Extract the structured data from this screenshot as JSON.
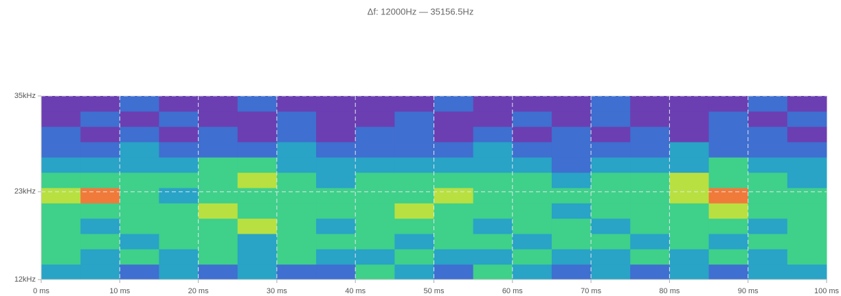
{
  "chart_data": {
    "type": "heatmap",
    "title": "Δf: 12000Hz — 35156.5Hz",
    "xlim": [
      0,
      100
    ],
    "xticks": [
      {
        "value": 0,
        "label": "0 ms"
      },
      {
        "value": 10,
        "label": "10 ms"
      },
      {
        "value": 20,
        "label": "20 ms"
      },
      {
        "value": 30,
        "label": "30 ms"
      },
      {
        "value": 40,
        "label": "40 ms"
      },
      {
        "value": 50,
        "label": "50 ms"
      },
      {
        "value": 60,
        "label": "60 ms"
      },
      {
        "value": 70,
        "label": "70 ms"
      },
      {
        "value": 80,
        "label": "80 ms"
      },
      {
        "value": 90,
        "label": "90 ms"
      },
      {
        "value": 100,
        "label": "100 ms"
      }
    ],
    "ylim": [
      12,
      35
    ],
    "yticks": [
      {
        "value": 12,
        "label": "12kHz"
      },
      {
        "value": 23,
        "label": "23kHz"
      },
      {
        "value": 35,
        "label": "35kHz"
      }
    ],
    "grid": true,
    "colorscale": [
      "#6b3fb2",
      "#3f6fd0",
      "#29a3c6",
      "#3fd08a",
      "#b8e040",
      "#f07a3a"
    ],
    "z": [
      [
        2,
        2,
        1,
        2,
        1,
        2,
        1,
        1,
        3,
        2,
        1,
        3,
        2,
        1,
        2,
        1,
        2,
        1,
        2,
        2
      ],
      [
        3,
        2,
        3,
        2,
        3,
        2,
        3,
        2,
        2,
        3,
        2,
        2,
        3,
        2,
        2,
        3,
        2,
        3,
        2,
        3
      ],
      [
        3,
        3,
        2,
        3,
        3,
        2,
        3,
        3,
        3,
        2,
        3,
        3,
        2,
        3,
        3,
        2,
        3,
        2,
        3,
        3
      ],
      [
        3,
        2,
        3,
        3,
        3,
        4,
        3,
        2,
        3,
        3,
        3,
        2,
        3,
        3,
        2,
        3,
        3,
        3,
        2,
        3
      ],
      [
        3,
        3,
        3,
        3,
        4,
        3,
        3,
        3,
        3,
        4,
        3,
        3,
        3,
        2,
        3,
        3,
        3,
        4,
        3,
        3
      ],
      [
        4,
        5,
        3,
        2,
        3,
        3,
        3,
        3,
        3,
        3,
        4,
        3,
        3,
        3,
        3,
        3,
        4,
        5,
        3,
        3
      ],
      [
        3,
        3,
        3,
        3,
        3,
        4,
        3,
        2,
        3,
        3,
        3,
        3,
        3,
        2,
        3,
        3,
        4,
        3,
        3,
        2
      ],
      [
        2,
        2,
        2,
        2,
        3,
        3,
        2,
        2,
        2,
        2,
        2,
        2,
        2,
        1,
        2,
        2,
        2,
        3,
        2,
        2
      ],
      [
        1,
        1,
        2,
        1,
        1,
        1,
        2,
        1,
        1,
        1,
        1,
        2,
        1,
        1,
        1,
        1,
        2,
        1,
        1,
        1
      ],
      [
        1,
        0,
        1,
        0,
        1,
        0,
        1,
        0,
        1,
        1,
        0,
        1,
        0,
        1,
        0,
        1,
        0,
        1,
        1,
        0
      ],
      [
        0,
        1,
        0,
        1,
        0,
        0,
        1,
        0,
        0,
        1,
        0,
        0,
        1,
        0,
        1,
        0,
        0,
        1,
        0,
        1
      ],
      [
        0,
        0,
        1,
        0,
        0,
        1,
        0,
        0,
        0,
        0,
        1,
        0,
        0,
        0,
        1,
        0,
        0,
        0,
        1,
        0
      ]
    ]
  }
}
